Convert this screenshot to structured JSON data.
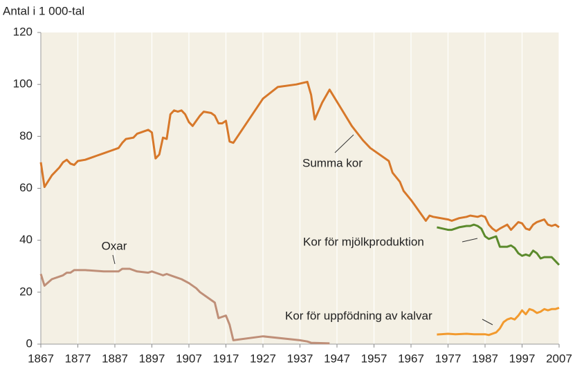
{
  "chart_data": {
    "type": "line",
    "ylabel": "Antal i 1 000-tal",
    "xlim": [
      1867,
      2007
    ],
    "xticks": [
      1867,
      1877,
      1887,
      1897,
      1907,
      1917,
      1927,
      1937,
      1947,
      1957,
      1967,
      1977,
      1987,
      1997,
      2007
    ],
    "ylim": [
      0,
      120
    ],
    "yticks": [
      0,
      20,
      40,
      60,
      80,
      100,
      120
    ],
    "grid": "x",
    "series": [
      {
        "name": "Summa kor",
        "color": "#d7782a",
        "x": [
          1867,
          1868,
          1870,
          1872,
          1873,
          1874,
          1875,
          1876,
          1877,
          1879,
          1881,
          1882,
          1884,
          1886,
          1888,
          1889,
          1890,
          1892,
          1893,
          1895,
          1896,
          1897,
          1898,
          1899,
          1900,
          1901,
          1902,
          1903,
          1904,
          1905,
          1906,
          1907,
          1908,
          1909,
          1910,
          1911,
          1913,
          1914,
          1915,
          1916,
          1917,
          1918,
          1919,
          1927,
          1931,
          1936,
          1939,
          1940,
          1941,
          1943,
          1945,
          1948,
          1951,
          1954,
          1956,
          1961,
          1962,
          1964,
          1965,
          1967,
          1968,
          1970,
          1971,
          1972,
          1973,
          1977,
          1978,
          1980,
          1982,
          1983,
          1985,
          1986,
          1987,
          1988,
          1989,
          1990,
          1991,
          1993,
          1994,
          1995,
          1996,
          1997,
          1998,
          1999,
          2000,
          2001,
          2003,
          2004,
          2005,
          2006,
          2007
        ],
        "values": [
          70,
          60.5,
          65,
          68,
          70,
          71,
          69.5,
          69,
          70.5,
          71,
          72,
          72.5,
          73.5,
          74.5,
          75.5,
          77.5,
          79,
          79.5,
          81,
          82,
          82.5,
          81.5,
          71.5,
          73,
          79.5,
          79,
          88.5,
          90,
          89.5,
          90,
          88.5,
          85.5,
          84,
          86,
          88,
          89.5,
          89,
          88,
          85,
          85,
          86,
          78,
          77.5,
          94.5,
          99,
          100,
          101,
          96,
          86.5,
          93,
          98,
          91,
          84,
          78.5,
          75.5,
          70.5,
          66,
          62.5,
          59,
          55.5,
          53.5,
          49.5,
          47.5,
          49.5,
          49,
          48,
          47.5,
          48.5,
          49,
          49.5,
          49,
          49.5,
          49,
          46,
          44.5,
          43.5,
          44.5,
          46,
          44,
          45.5,
          47,
          46.5,
          44.5,
          44,
          46,
          47,
          48,
          46,
          45.5,
          46,
          45
        ]
      },
      {
        "name": "Oxar",
        "color": "#bf8f78",
        "x": [
          1867,
          1868,
          1870,
          1873,
          1874,
          1875,
          1876,
          1879,
          1884,
          1888,
          1889,
          1891,
          1893,
          1896,
          1897,
          1899,
          1900,
          1901,
          1903,
          1905,
          1907,
          1909,
          1910,
          1912,
          1914,
          1915,
          1916,
          1917,
          1918,
          1919,
          1927,
          1937,
          1939,
          1940,
          1945
        ],
        "values": [
          27,
          22.5,
          25,
          26.5,
          27.5,
          27.5,
          28.5,
          28.5,
          28,
          28,
          29,
          29,
          28,
          27.5,
          28,
          27,
          26.5,
          27,
          26,
          25,
          23.5,
          21.5,
          20,
          18,
          16,
          10,
          10.5,
          11,
          7.5,
          1.5,
          3,
          1.5,
          1,
          0.5,
          0.3
        ]
      },
      {
        "name": "Kor för mjölkproduktion",
        "color": "#5b8a2c",
        "x": [
          1974,
          1977,
          1978,
          1980,
          1982,
          1983,
          1984,
          1985,
          1986,
          1987,
          1988,
          1990,
          1991,
          1993,
          1994,
          1995,
          1996,
          1997,
          1998,
          1999,
          2000,
          2001,
          2002,
          2003,
          2005,
          2006,
          2007
        ],
        "values": [
          45,
          44,
          44,
          45,
          45.5,
          45.5,
          46,
          45.5,
          44.5,
          41.5,
          40.5,
          41.5,
          37.5,
          37.5,
          38,
          37,
          35,
          34,
          34.5,
          34,
          36,
          35,
          33,
          33.5,
          33.5,
          32,
          30.5
        ]
      },
      {
        "name": "Kor för uppfödning av kalvar",
        "color": "#f29a2e",
        "x": [
          1974,
          1977,
          1979,
          1982,
          1984,
          1987,
          1988,
          1990,
          1991,
          1992,
          1993,
          1994,
          1995,
          1996,
          1997,
          1998,
          1999,
          2000,
          2001,
          2002,
          2003,
          2004,
          2005,
          2006,
          2007
        ],
        "values": [
          3.7,
          4,
          3.8,
          4,
          3.8,
          3.8,
          3.5,
          4.5,
          6,
          8.5,
          9.5,
          10,
          9.5,
          11,
          13,
          11.5,
          13.5,
          13,
          12,
          12.5,
          13.5,
          13,
          13.5,
          13.5,
          14
        ]
      }
    ]
  }
}
